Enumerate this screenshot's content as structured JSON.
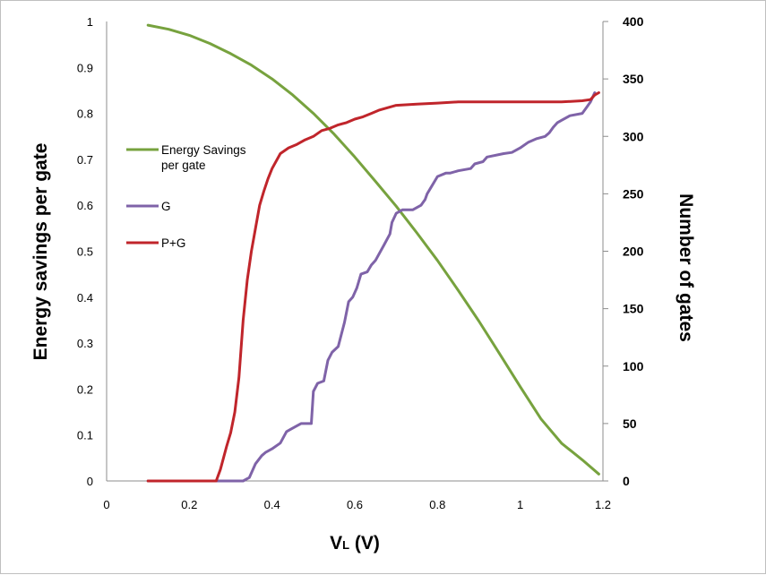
{
  "chart_data": {
    "type": "line",
    "title": "",
    "xlabel": "VL (V)",
    "xlabel_main": "V",
    "xlabel_sub": "L",
    "xlabel_rest": " (V)",
    "ylabel_left": "Energy savings per gate",
    "ylabel_right": "Number of gates",
    "xlim": [
      0,
      1.2
    ],
    "ylim_left": [
      0,
      1
    ],
    "ylim_right": [
      0,
      400
    ],
    "x_ticks": [
      "0",
      "0.2",
      "0.4",
      "0.6",
      "0.8",
      "1",
      "1.2"
    ],
    "y_ticks_left": [
      "0",
      "0.1",
      "0.2",
      "0.3",
      "0.4",
      "0.5",
      "0.6",
      "0.7",
      "0.8",
      "0.9",
      "1"
    ],
    "y_ticks_right": [
      "0",
      "50",
      "100",
      "150",
      "200",
      "250",
      "300",
      "350",
      "400"
    ],
    "grid": false,
    "legend_position": "upper-left inside plot",
    "series": [
      {
        "name": "Energy Savings per gate",
        "legend_line1": "Energy Savings",
        "legend_line2": "per gate",
        "axis": "left",
        "color": "#77a23e",
        "x": [
          0.1,
          0.15,
          0.2,
          0.25,
          0.3,
          0.35,
          0.4,
          0.45,
          0.5,
          0.55,
          0.6,
          0.65,
          0.7,
          0.75,
          0.8,
          0.85,
          0.9,
          0.95,
          1.0,
          1.05,
          1.1,
          1.15,
          1.19
        ],
        "values": [
          0.992,
          0.983,
          0.97,
          0.952,
          0.93,
          0.905,
          0.875,
          0.84,
          0.8,
          0.755,
          0.705,
          0.652,
          0.598,
          0.54,
          0.48,
          0.415,
          0.348,
          0.277,
          0.205,
          0.135,
          0.082,
          0.046,
          0.015
        ]
      },
      {
        "name": "G",
        "legend_line1": "G",
        "axis": "right",
        "color": "#7f63a8",
        "x": [
          0.1,
          0.33,
          0.345,
          0.36,
          0.375,
          0.385,
          0.4,
          0.42,
          0.435,
          0.445,
          0.46,
          0.47,
          0.485,
          0.495,
          0.5,
          0.51,
          0.525,
          0.535,
          0.545,
          0.56,
          0.575,
          0.585,
          0.595,
          0.605,
          0.615,
          0.63,
          0.64,
          0.65,
          0.67,
          0.685,
          0.69,
          0.7,
          0.715,
          0.74,
          0.76,
          0.77,
          0.775,
          0.785,
          0.8,
          0.82,
          0.83,
          0.85,
          0.88,
          0.89,
          0.91,
          0.92,
          0.96,
          0.98,
          1.0,
          1.02,
          1.04,
          1.06,
          1.07,
          1.08,
          1.09,
          1.1,
          1.12,
          1.15,
          1.16,
          1.17,
          1.18
        ],
        "values": [
          0,
          0,
          3,
          15,
          22,
          25,
          28,
          33,
          43,
          45,
          48,
          50,
          50,
          50,
          78,
          85,
          87,
          105,
          112,
          117,
          138,
          156,
          160,
          168,
          180,
          182,
          188,
          192,
          205,
          215,
          225,
          233,
          236,
          236,
          240,
          245,
          250,
          256,
          265,
          268,
          268,
          270,
          272,
          276,
          278,
          282,
          285,
          286,
          290,
          295,
          298,
          300,
          303,
          308,
          312,
          314,
          318,
          320,
          325,
          330,
          338
        ]
      },
      {
        "name": "P+G",
        "legend_line1": "P+G",
        "axis": "right",
        "color": "#c0252b",
        "x": [
          0.1,
          0.265,
          0.275,
          0.29,
          0.3,
          0.31,
          0.32,
          0.33,
          0.34,
          0.35,
          0.36,
          0.37,
          0.38,
          0.39,
          0.4,
          0.42,
          0.44,
          0.46,
          0.48,
          0.5,
          0.52,
          0.54,
          0.56,
          0.58,
          0.6,
          0.62,
          0.64,
          0.66,
          0.68,
          0.7,
          0.75,
          0.8,
          0.85,
          0.9,
          0.95,
          1.0,
          1.05,
          1.1,
          1.15,
          1.17,
          1.18,
          1.19
        ],
        "values": [
          0,
          0,
          10,
          30,
          42,
          60,
          90,
          140,
          175,
          200,
          220,
          240,
          252,
          263,
          272,
          285,
          290,
          293,
          297,
          300,
          305,
          307,
          310,
          312,
          315,
          317,
          320,
          323,
          325,
          327,
          328,
          329,
          330,
          330,
          330,
          330,
          330,
          330,
          331,
          332,
          336,
          338
        ]
      }
    ]
  }
}
